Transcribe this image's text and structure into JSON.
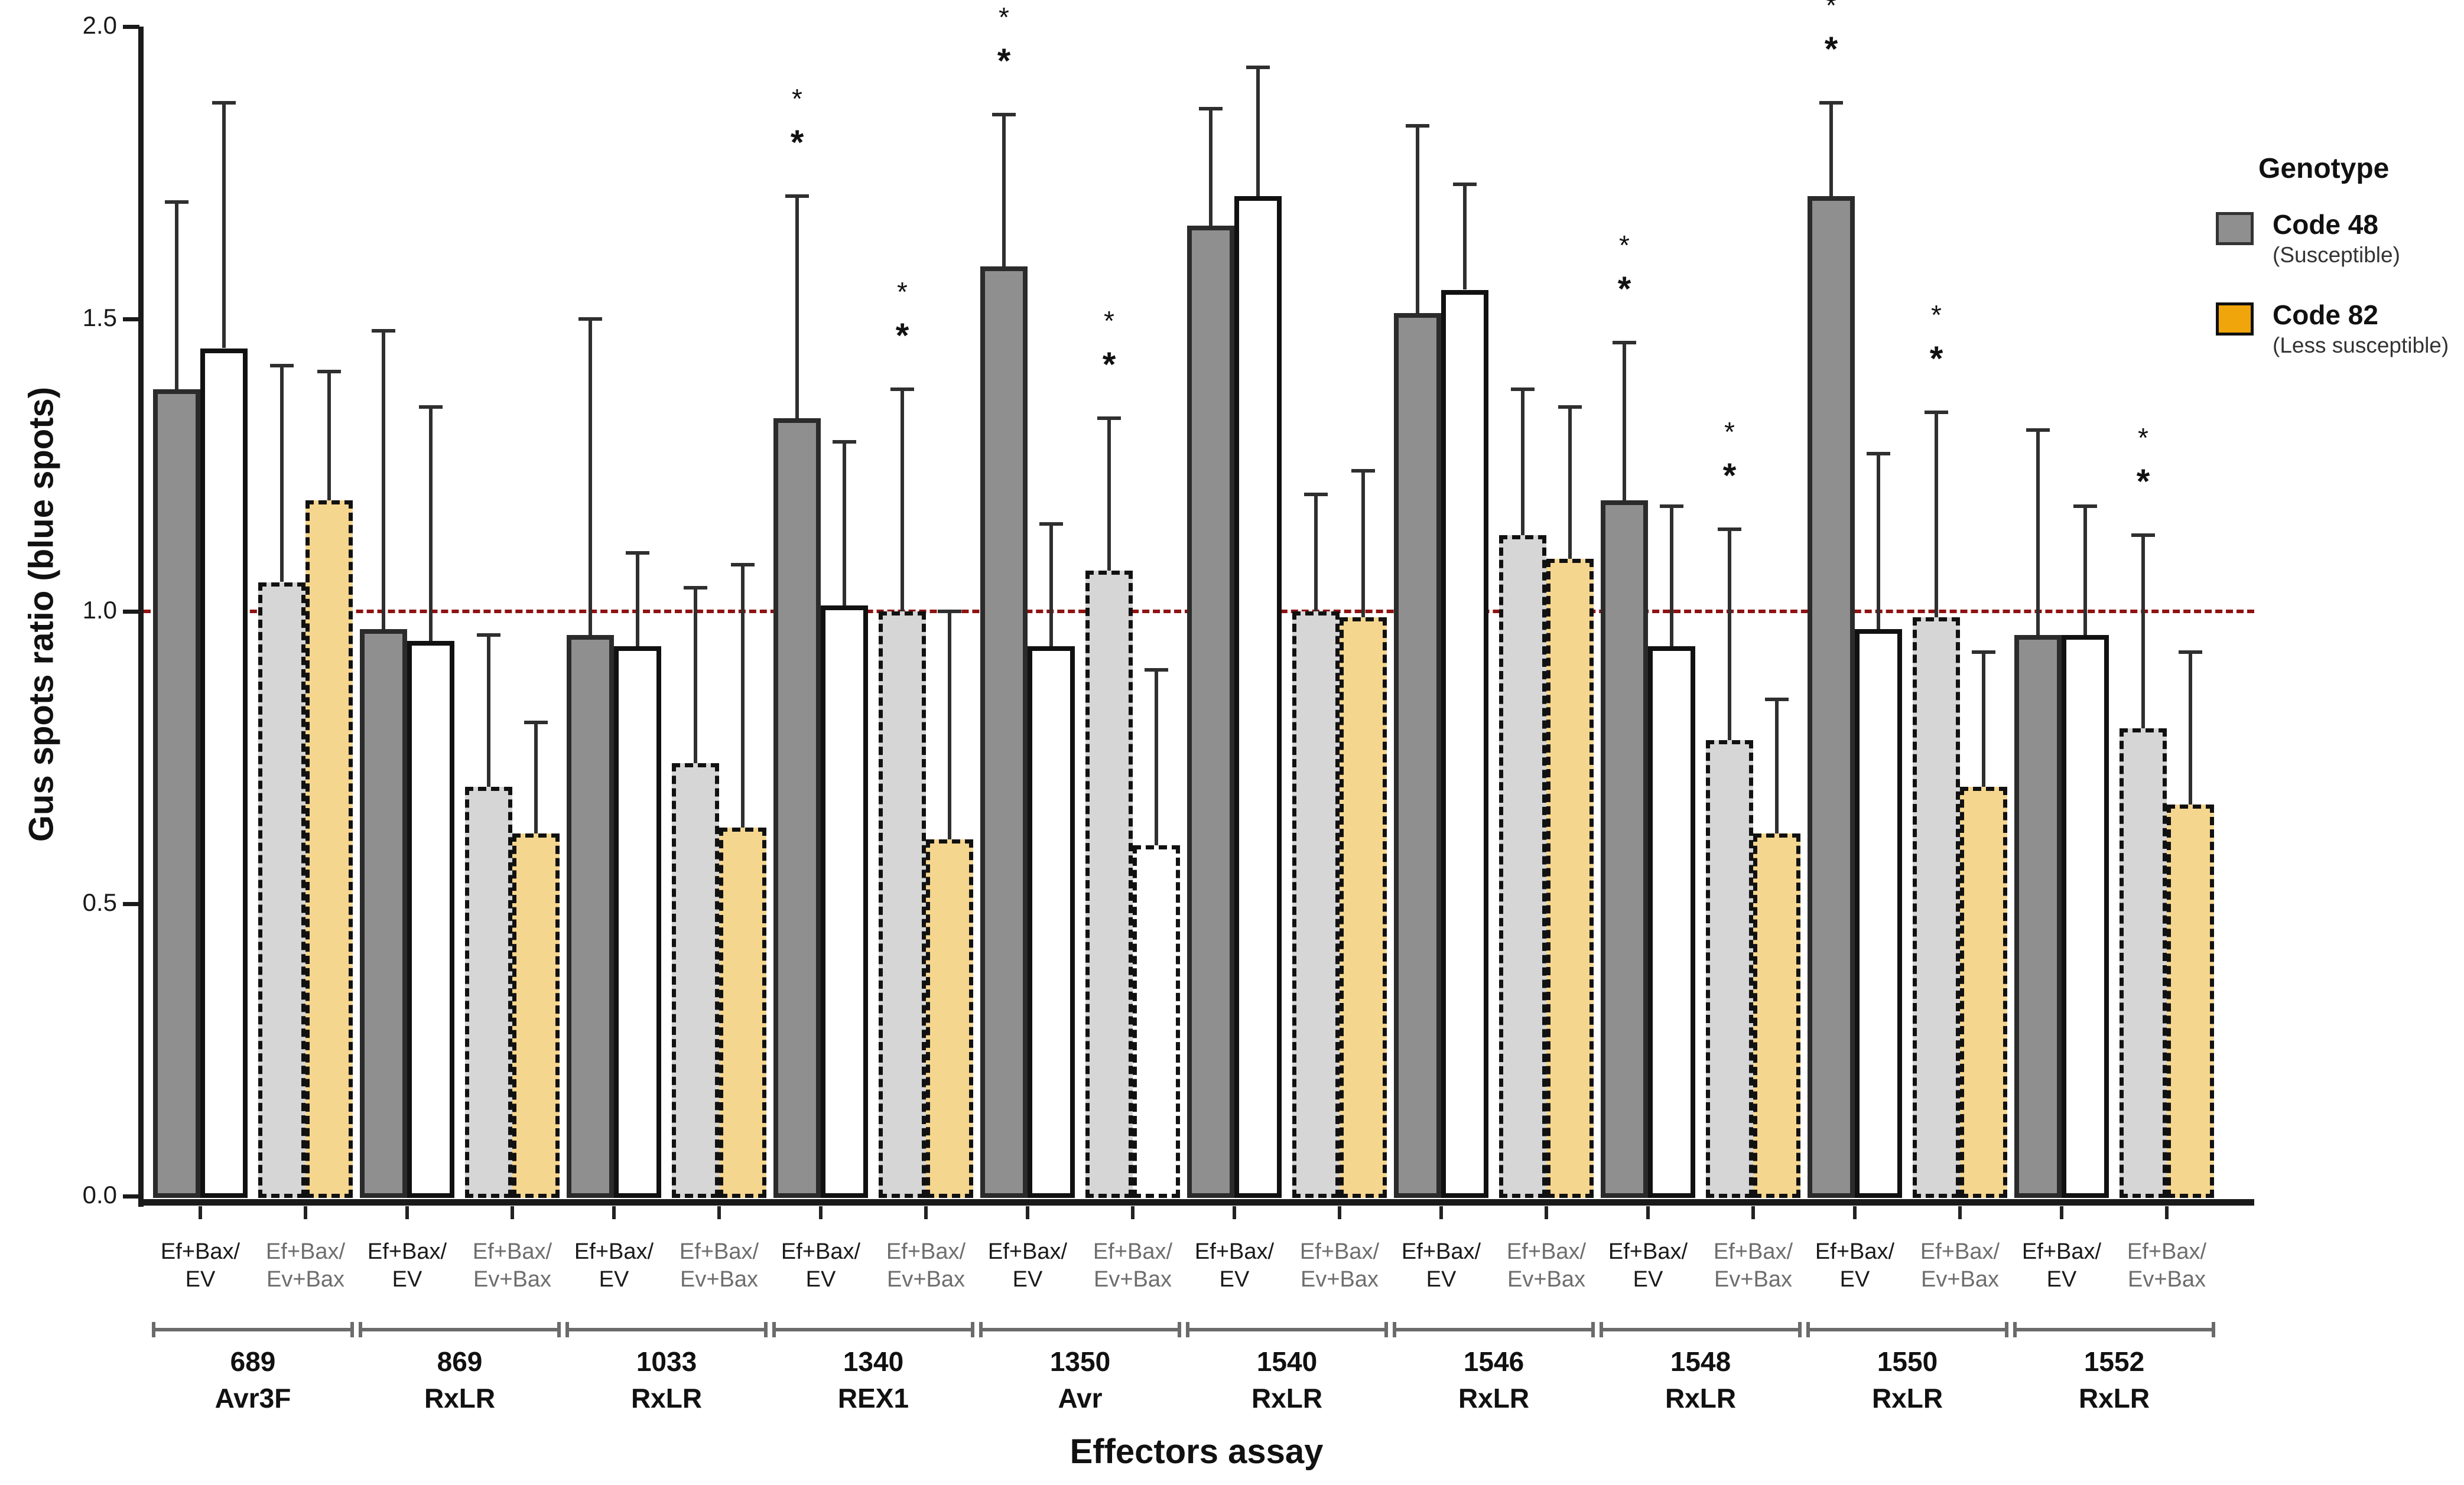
{
  "figure": {
    "ylabel": "Gus spots ratio (blue spots)",
    "xlabel": "Effectors assay"
  },
  "legend": {
    "title": "Genotype",
    "items": [
      {
        "label": "Code 48",
        "sublabel": "(Susceptible)",
        "color": "#8f8f8f",
        "border": "#333333"
      },
      {
        "label": "Code 82",
        "sublabel": "(Less susceptible)",
        "color": "#f0a50a",
        "border": "#111111"
      }
    ]
  },
  "chart_data": {
    "type": "bar",
    "title": "",
    "xlabel": "Effectors assay",
    "ylabel": "Gus spots ratio (blue spots)",
    "ylim": [
      0,
      2
    ],
    "yticks": [
      0.0,
      0.5,
      1.0,
      1.5,
      2.0
    ],
    "grid": false,
    "legend_position": "right",
    "reference_line": {
      "y": 1.0,
      "color": "#8e1212",
      "style": "dashed"
    },
    "sig_marker": "*",
    "pair_labels": [
      [
        "Ef+Bax/",
        "EV"
      ],
      [
        "Ef+Bax/",
        "Ev+Bax"
      ]
    ],
    "bar_styles": [
      {
        "name": "code48-ef-bax-ev",
        "genotype": "Code 48",
        "condition": "Ef+Bax/EV",
        "fill": "#8f8f8f",
        "border_style": "solid",
        "border_color": "#2b2b2b"
      },
      {
        "name": "code82-ef-bax-ev",
        "genotype": "Code 82",
        "condition": "Ef+Bax/EV",
        "fill": "#ffffff",
        "border_style": "solid",
        "border_color": "#111111"
      },
      {
        "name": "code48-ef-bax-ev-bax",
        "genotype": "Code 48",
        "condition": "Ef+Bax/Ev+Bax",
        "fill": "#d6d6d6",
        "border_style": "dashed",
        "border_color": "#111111"
      },
      {
        "name": "code82-ef-bax-ev-bax",
        "genotype": "Code 82",
        "condition": "Ef+Bax/Ev+Bax",
        "fill": "#f5d68f",
        "border_style": "dashed",
        "border_color": "#111111"
      }
    ],
    "groups": [
      {
        "id": "689",
        "gene": "Avr3F",
        "bars": [
          {
            "value": 1.38,
            "err_top": 1.7,
            "sig": false
          },
          {
            "value": 1.45,
            "err_top": 1.87,
            "sig": false
          },
          {
            "value": 1.05,
            "err_top": 1.42,
            "sig": false
          },
          {
            "value": 1.19,
            "err_top": 1.41,
            "sig": false
          }
        ]
      },
      {
        "id": "869",
        "gene": "RxLR",
        "bars": [
          {
            "value": 0.97,
            "err_top": 1.48,
            "sig": false
          },
          {
            "value": 0.95,
            "err_top": 1.35,
            "sig": false
          },
          {
            "value": 0.7,
            "err_top": 0.96,
            "sig": false
          },
          {
            "value": 0.62,
            "err_top": 0.81,
            "sig": false
          }
        ]
      },
      {
        "id": "1033",
        "gene": "RxLR",
        "bars": [
          {
            "value": 0.96,
            "err_top": 1.5,
            "sig": false
          },
          {
            "value": 0.94,
            "err_top": 1.1,
            "sig": false
          },
          {
            "value": 0.74,
            "err_top": 1.04,
            "sig": false
          },
          {
            "value": 0.63,
            "err_top": 1.08,
            "sig": false
          }
        ]
      },
      {
        "id": "1340",
        "gene": "REX1",
        "bars": [
          {
            "value": 1.33,
            "err_top": 1.71,
            "sig": true
          },
          {
            "value": 1.01,
            "err_top": 1.29,
            "sig": false
          },
          {
            "value": 1.0,
            "err_top": 1.38,
            "sig": true
          },
          {
            "value": 0.61,
            "err_top": 1.0,
            "sig": false
          }
        ]
      },
      {
        "id": "1350",
        "gene": "Avr",
        "bars": [
          {
            "value": 1.59,
            "err_top": 1.85,
            "sig": true
          },
          {
            "value": 0.94,
            "err_top": 1.15,
            "sig": false
          },
          {
            "value": 1.07,
            "err_top": 1.33,
            "sig": true
          },
          {
            "value": 0.6,
            "err_top": 0.9,
            "sig": false,
            "fill": "#ffffff"
          }
        ]
      },
      {
        "id": "1540",
        "gene": "RxLR",
        "bars": [
          {
            "value": 1.66,
            "err_top": 1.86,
            "sig": false
          },
          {
            "value": 1.71,
            "err_top": 1.93,
            "sig": false
          },
          {
            "value": 1.0,
            "err_top": 1.2,
            "sig": false
          },
          {
            "value": 0.99,
            "err_top": 1.24,
            "sig": false
          }
        ]
      },
      {
        "id": "1546",
        "gene": "RxLR",
        "bars": [
          {
            "value": 1.51,
            "err_top": 1.83,
            "sig": false
          },
          {
            "value": 1.55,
            "err_top": 1.73,
            "sig": false
          },
          {
            "value": 1.13,
            "err_top": 1.38,
            "sig": false
          },
          {
            "value": 1.09,
            "err_top": 1.35,
            "sig": false
          }
        ]
      },
      {
        "id": "1548",
        "gene": "RxLR",
        "bars": [
          {
            "value": 1.19,
            "err_top": 1.46,
            "sig": true
          },
          {
            "value": 0.94,
            "err_top": 1.18,
            "sig": false
          },
          {
            "value": 0.78,
            "err_top": 1.14,
            "sig": true
          },
          {
            "value": 0.62,
            "err_top": 0.85,
            "sig": false
          }
        ]
      },
      {
        "id": "1550",
        "gene": "RxLR",
        "bars": [
          {
            "value": 1.71,
            "err_top": 1.87,
            "sig": true
          },
          {
            "value": 0.97,
            "err_top": 1.27,
            "sig": false
          },
          {
            "value": 0.99,
            "err_top": 1.34,
            "sig": true
          },
          {
            "value": 0.7,
            "err_top": 0.93,
            "sig": false
          }
        ]
      },
      {
        "id": "1552",
        "gene": "RxLR",
        "bars": [
          {
            "value": 0.96,
            "err_top": 1.31,
            "sig": false
          },
          {
            "value": 0.96,
            "err_top": 1.18,
            "sig": false
          },
          {
            "value": 0.8,
            "err_top": 1.13,
            "sig": true
          },
          {
            "value": 0.67,
            "err_top": 0.93,
            "sig": false
          }
        ]
      }
    ]
  }
}
